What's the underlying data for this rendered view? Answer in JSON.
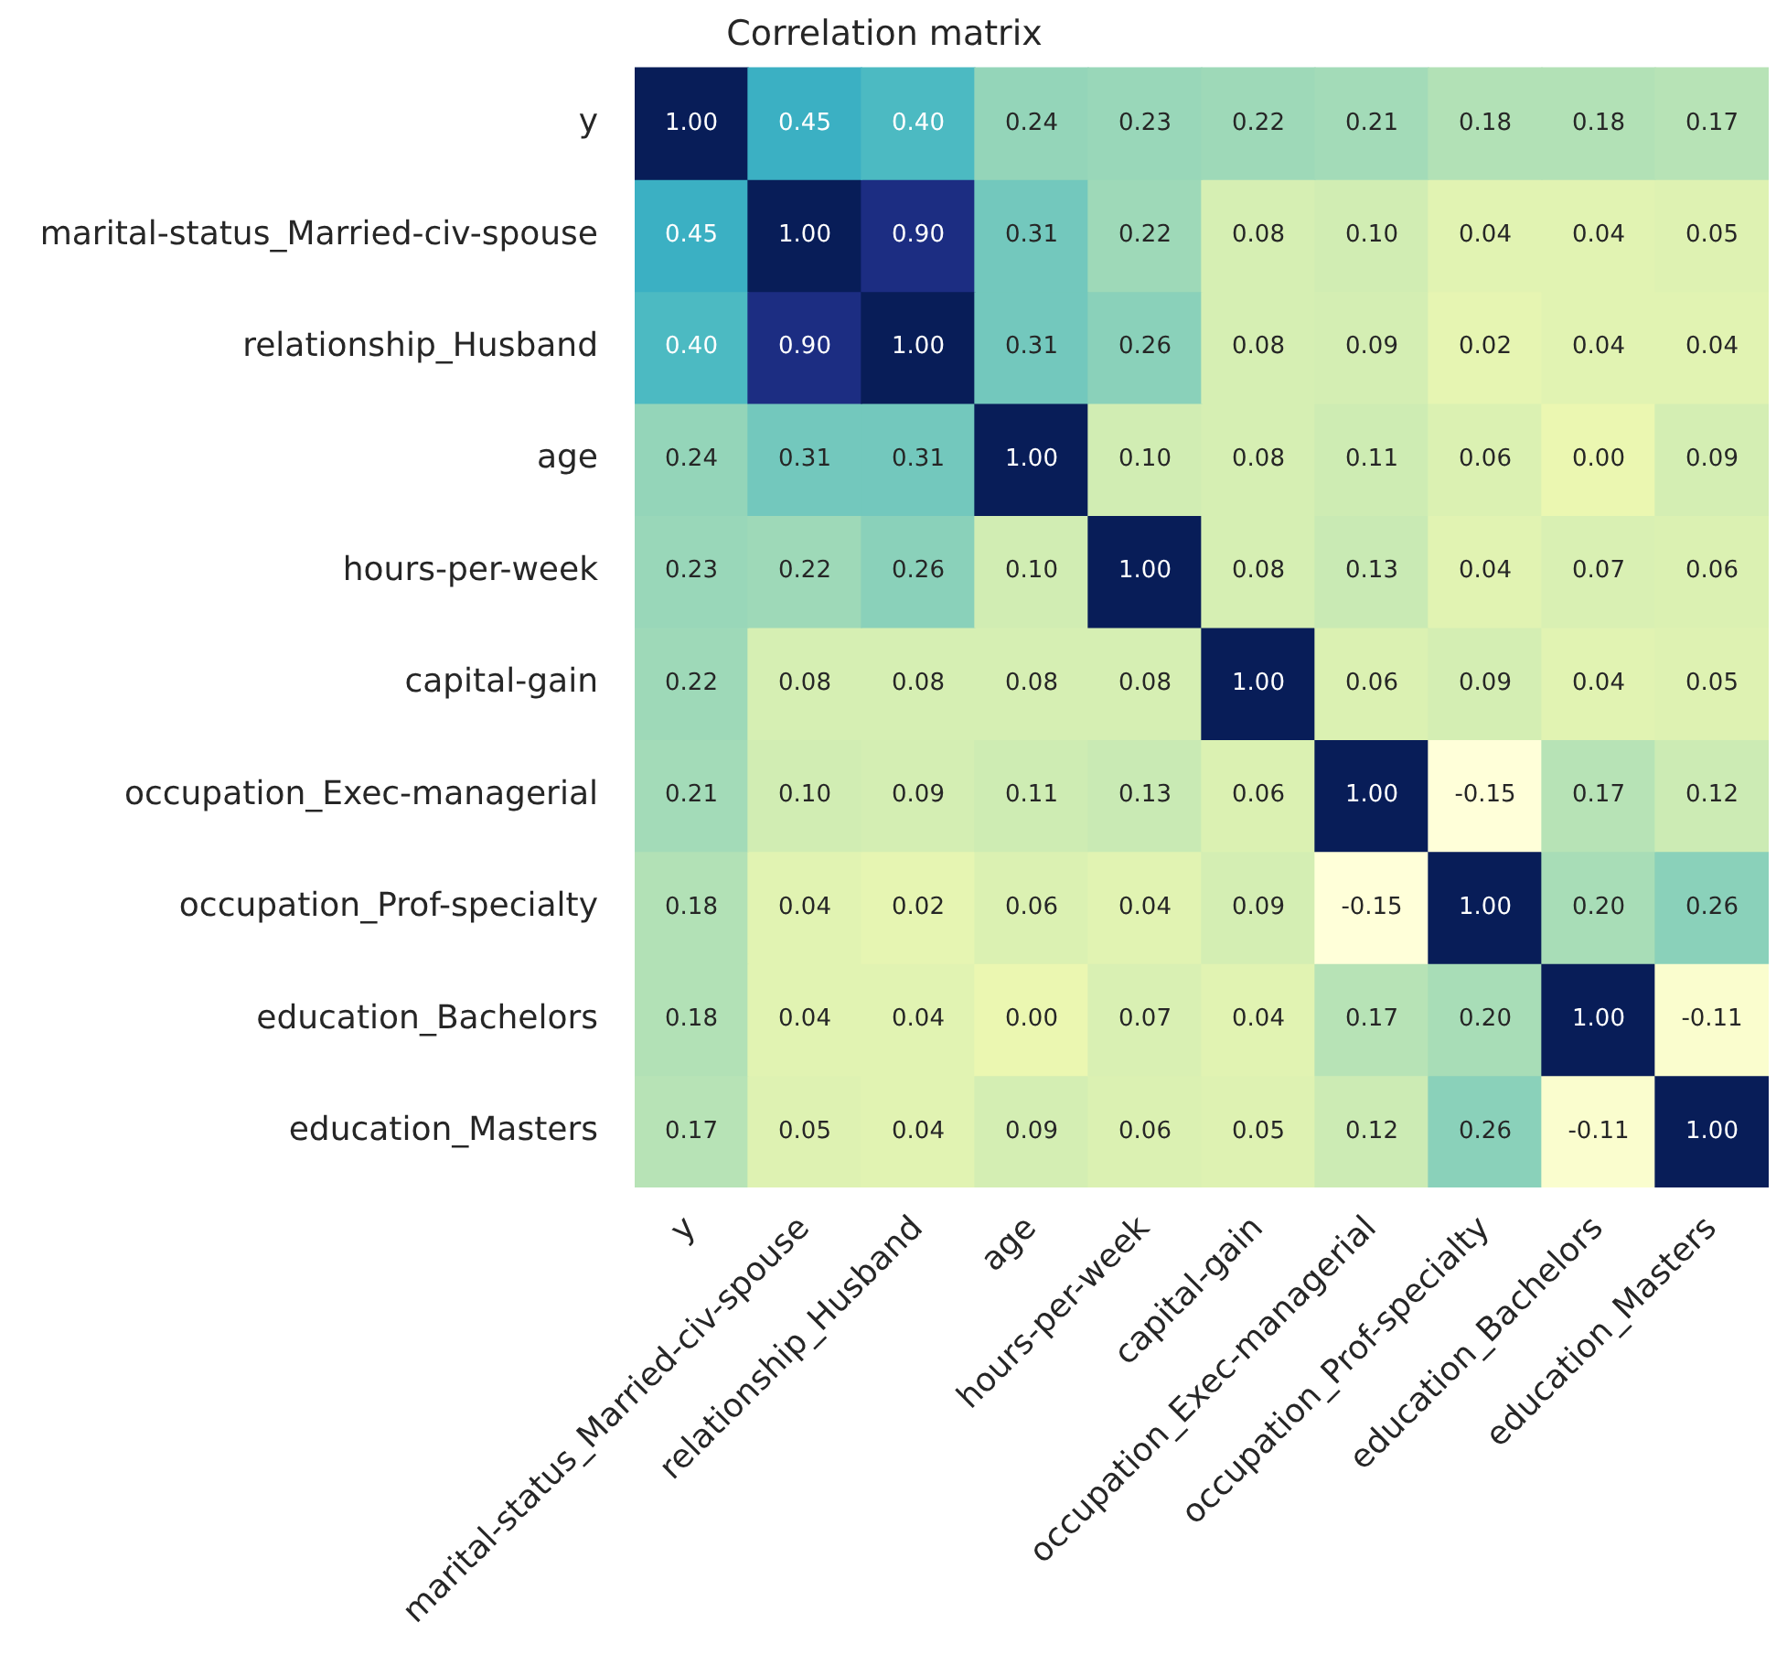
{
  "chart_data": {
    "type": "heatmap",
    "title": "Correlation matrix",
    "categories": [
      "y",
      "marital-status_Married-civ-spouse",
      "relationship_Husband",
      "age",
      "hours-per-week",
      "capital-gain",
      "occupation_Exec-managerial",
      "occupation_Prof-specialty",
      "education_Bachelors",
      "education_Masters"
    ],
    "y_categories": [
      "y",
      "marital-status_Married-civ-spouse",
      "relationship_Husband",
      "age",
      "hours-per-week",
      "capital-gain",
      "occupation_Exec-managerial",
      "occupation_Prof-specialty",
      "education_Bachelors",
      "education_Masters"
    ],
    "cells": [
      [
        1.0,
        0.45,
        0.4,
        0.24,
        0.23,
        0.22,
        0.21,
        0.18,
        0.18,
        0.17
      ],
      [
        0.45,
        1.0,
        0.9,
        0.31,
        0.22,
        0.08,
        0.1,
        0.04,
        0.04,
        0.05
      ],
      [
        0.4,
        0.9,
        1.0,
        0.31,
        0.26,
        0.08,
        0.09,
        0.02,
        0.04,
        0.04
      ],
      [
        0.24,
        0.31,
        0.31,
        1.0,
        0.1,
        0.08,
        0.11,
        0.06,
        0.0,
        0.09
      ],
      [
        0.23,
        0.22,
        0.26,
        0.1,
        1.0,
        0.08,
        0.13,
        0.04,
        0.07,
        0.06
      ],
      [
        0.22,
        0.08,
        0.08,
        0.08,
        0.08,
        1.0,
        0.06,
        0.09,
        0.04,
        0.05
      ],
      [
        0.21,
        0.1,
        0.09,
        0.11,
        0.13,
        0.06,
        1.0,
        -0.15,
        0.17,
        0.12
      ],
      [
        0.18,
        0.04,
        0.02,
        0.06,
        0.04,
        0.09,
        -0.15,
        1.0,
        0.2,
        0.26
      ],
      [
        0.18,
        0.04,
        0.04,
        0.0,
        0.07,
        0.04,
        0.17,
        0.2,
        1.0,
        -0.11
      ],
      [
        0.17,
        0.05,
        0.04,
        0.09,
        0.06,
        0.05,
        0.12,
        0.26,
        -0.11,
        1.0
      ]
    ],
    "cell_labels": [
      [
        "1.00",
        "0.45",
        "0.40",
        "0.24",
        "0.23",
        "0.22",
        "0.21",
        "0.18",
        "0.18",
        "0.17"
      ],
      [
        "0.45",
        "1.00",
        "0.90",
        "0.31",
        "0.22",
        "0.08",
        "0.10",
        "0.04",
        "0.04",
        "0.05"
      ],
      [
        "0.40",
        "0.90",
        "1.00",
        "0.31",
        "0.26",
        "0.08",
        "0.09",
        "0.02",
        "0.04",
        "0.04"
      ],
      [
        "0.24",
        "0.31",
        "0.31",
        "1.00",
        "0.10",
        "0.08",
        "0.11",
        "0.06",
        "0.00",
        "0.09"
      ],
      [
        "0.23",
        "0.22",
        "0.26",
        "0.10",
        "1.00",
        "0.08",
        "0.13",
        "0.04",
        "0.07",
        "0.06"
      ],
      [
        "0.22",
        "0.08",
        "0.08",
        "0.08",
        "0.08",
        "1.00",
        "0.06",
        "0.09",
        "0.04",
        "0.05"
      ],
      [
        "0.21",
        "0.10",
        "0.09",
        "0.11",
        "0.13",
        "0.06",
        "1.00",
        "-0.15",
        "0.17",
        "0.12"
      ],
      [
        "0.18",
        "0.04",
        "0.02",
        "0.06",
        "0.04",
        "0.09",
        "-0.15",
        "1.00",
        "0.20",
        "0.26"
      ],
      [
        "0.18",
        "0.04",
        "0.04",
        "0.00",
        "0.07",
        "0.04",
        "0.17",
        "0.20",
        "1.00",
        "-0.11"
      ],
      [
        "0.17",
        "0.05",
        "0.04",
        "0.09",
        "0.06",
        "0.05",
        "0.12",
        "0.26",
        "-0.11",
        "1.00"
      ]
    ]
  }
}
